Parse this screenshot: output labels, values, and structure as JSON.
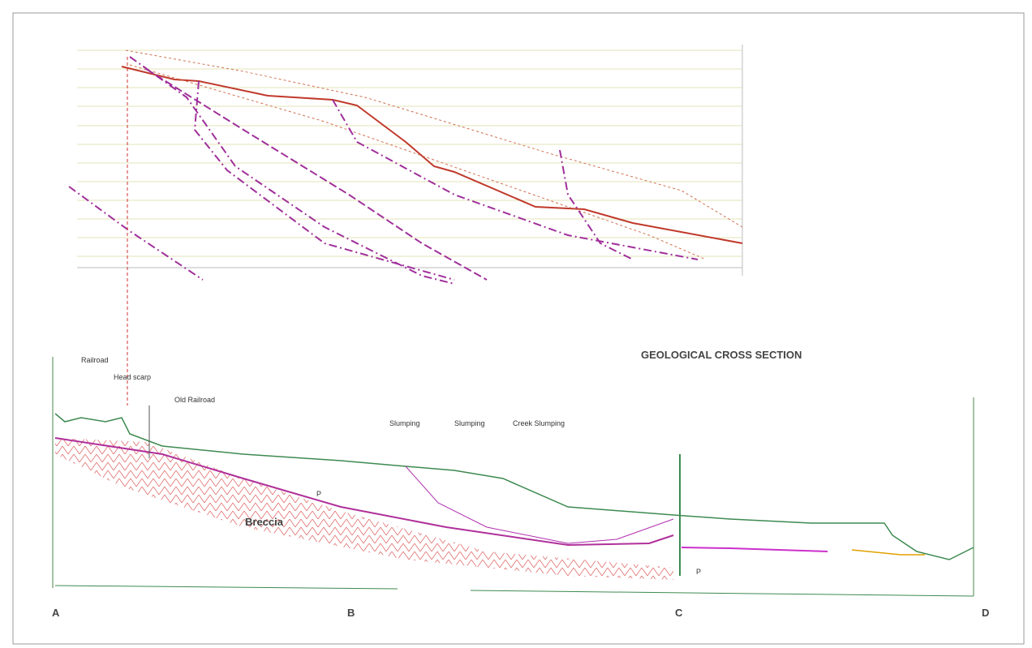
{
  "labels": {
    "title": "GEOLOGICAL CROSS SECTION",
    "railroad": "Railroad",
    "head_scarp": "Head scarp",
    "old_railroad": "Old Railroad",
    "slumping_1": "Slumping",
    "slumping_2": "Slumping",
    "creek_slumping": "Creek Slumping",
    "breccia": "Breccia",
    "section_a": "A",
    "section_b": "B",
    "section_c": "C",
    "section_d": "D",
    "p_1": "P",
    "p_2": "P"
  }
}
